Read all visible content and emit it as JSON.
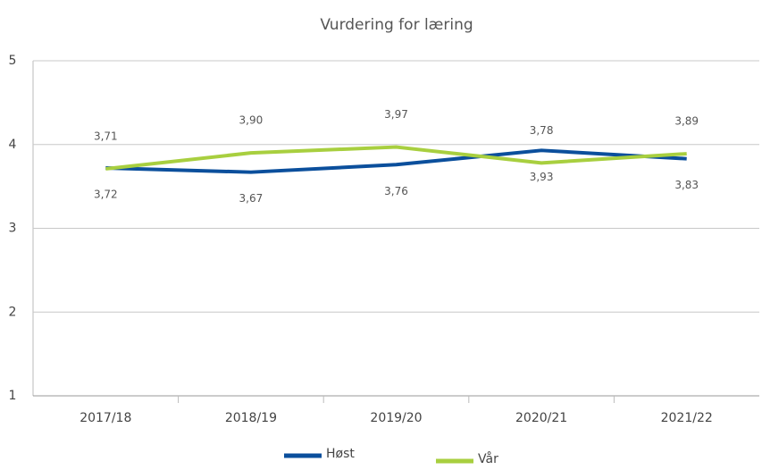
{
  "chart_data": {
    "type": "line",
    "title": "Vurdering for læring",
    "categories": [
      "2017/18",
      "2018/19",
      "2019/20",
      "2020/21",
      "2021/22"
    ],
    "series": [
      {
        "name": "Høst",
        "color": "#0b4f9c",
        "values": [
          3.72,
          3.67,
          3.76,
          3.93,
          3.83
        ],
        "value_labels": [
          "3,72",
          "3,67",
          "3,76",
          "3,93",
          "3,83"
        ]
      },
      {
        "name": "Vår",
        "color": "#a8cf3f",
        "values": [
          3.71,
          3.9,
          3.97,
          3.78,
          3.89
        ],
        "value_labels": [
          "3,71",
          "3,90",
          "3,97",
          "3,78",
          "3,89"
        ]
      }
    ],
    "ylim": [
      1,
      5
    ],
    "yticks": [
      1,
      2,
      3,
      4,
      5
    ],
    "grid": true
  }
}
